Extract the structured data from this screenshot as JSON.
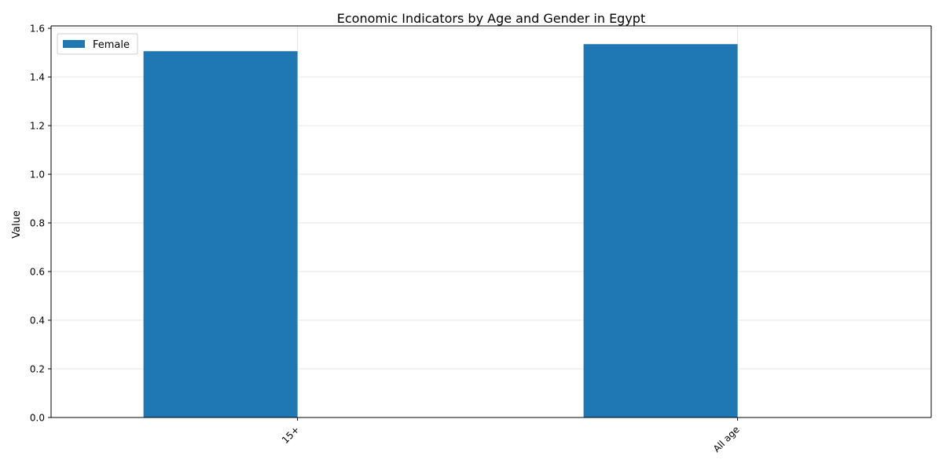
{
  "chart_data": {
    "type": "bar",
    "title": "Economic Indicators by Age and Gender in Egypt",
    "xlabel": "",
    "ylabel": "Value",
    "categories": [
      "15+",
      "All age"
    ],
    "series": [
      {
        "name": "Female",
        "values": [
          1.506,
          1.535
        ],
        "color": "#1f77b4"
      }
    ],
    "ylim": [
      0,
      1.61
    ],
    "yticks": [
      0.0,
      0.2,
      0.4,
      0.6,
      0.8,
      1.0,
      1.2,
      1.4,
      1.6
    ],
    "ytick_labels": [
      "0.0",
      "0.2",
      "0.4",
      "0.6",
      "0.8",
      "1.0",
      "1.2",
      "1.4",
      "1.6"
    ],
    "grid": true,
    "legend_position": "top-left"
  }
}
